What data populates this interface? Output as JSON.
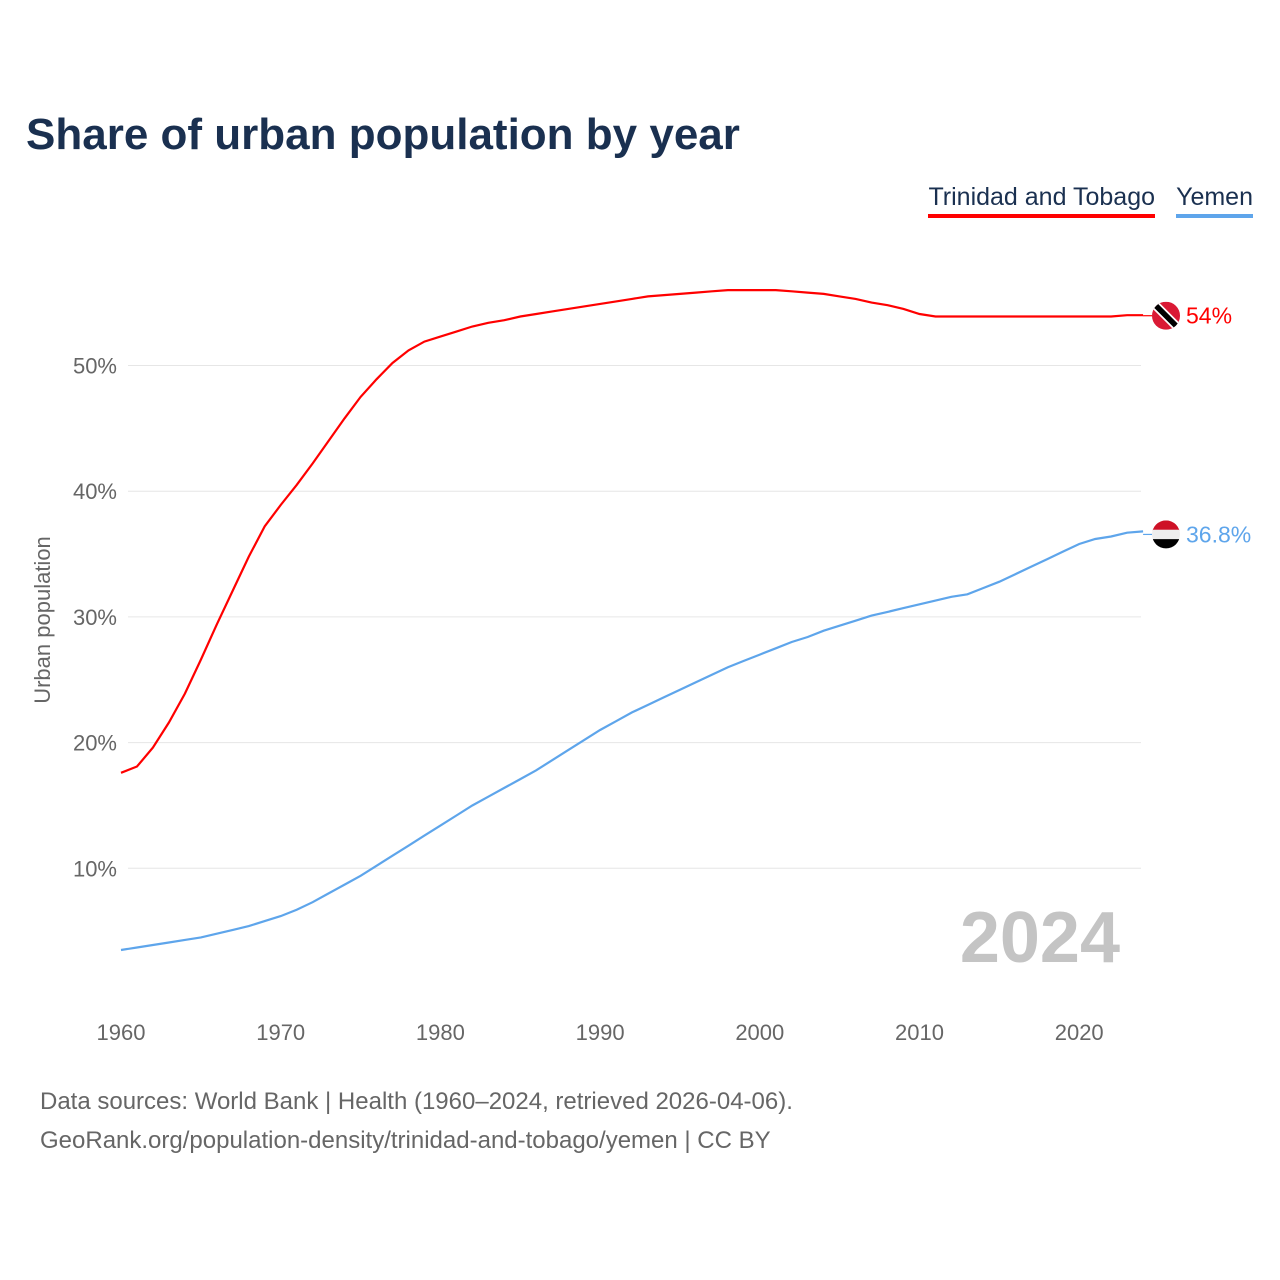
{
  "chart_data": {
    "type": "line",
    "title": "Share of urban population by year",
    "xlabel": "",
    "ylabel": "Urban population",
    "xlim": [
      1960,
      2024
    ],
    "ylim": [
      0,
      60
    ],
    "grid": true,
    "legend_placement": "top-right",
    "x_ticks": [
      "1960",
      "1970",
      "1980",
      "1990",
      "2000",
      "2010",
      "2020"
    ],
    "y_ticks": [
      "10%",
      "20%",
      "30%",
      "40%",
      "50%"
    ],
    "year_label": "2024",
    "series": [
      {
        "name": "Trinidad and Tobago",
        "color": "#ff0000",
        "end_label": "54%",
        "flag": "trinidad-and-tobago-flag",
        "values": [
          17.6,
          18.1,
          19.6,
          21.6,
          23.9,
          26.6,
          29.4,
          32.1,
          34.8,
          37.2,
          38.9,
          40.5,
          42.2,
          44.0,
          45.8,
          47.5,
          48.9,
          50.2,
          51.2,
          51.9,
          52.3,
          52.7,
          53.1,
          53.4,
          53.6,
          53.9,
          54.1,
          54.3,
          54.5,
          54.7,
          54.9,
          55.1,
          55.3,
          55.5,
          55.6,
          55.7,
          55.8,
          55.9,
          56.0,
          56.0,
          56.0,
          56.0,
          55.9,
          55.8,
          55.7,
          55.5,
          55.3,
          55.0,
          54.8,
          54.5,
          54.1,
          53.9,
          53.9,
          53.9,
          53.9,
          53.9,
          53.9,
          53.9,
          53.9,
          53.9,
          53.9,
          53.9,
          53.9,
          54.0,
          54.0
        ]
      },
      {
        "name": "Yemen",
        "color": "#5ea5eb",
        "end_label": "36.8%",
        "flag": "yemen-flag",
        "values": [
          3.5,
          3.7,
          3.9,
          4.1,
          4.3,
          4.5,
          4.8,
          5.1,
          5.4,
          5.8,
          6.2,
          6.7,
          7.3,
          8.0,
          8.7,
          9.4,
          10.2,
          11.0,
          11.8,
          12.6,
          13.4,
          14.2,
          15.0,
          15.7,
          16.4,
          17.1,
          17.8,
          18.6,
          19.4,
          20.2,
          21.0,
          21.7,
          22.4,
          23.0,
          23.6,
          24.2,
          24.8,
          25.4,
          26.0,
          26.5,
          27.0,
          27.5,
          28.0,
          28.4,
          28.9,
          29.3,
          29.7,
          30.1,
          30.4,
          30.7,
          31.0,
          31.3,
          31.6,
          31.8,
          32.3,
          32.8,
          33.4,
          34.0,
          34.6,
          35.2,
          35.8,
          36.2,
          36.4,
          36.7,
          36.8
        ]
      }
    ]
  },
  "footer": {
    "line1": "Data sources: World Bank | Health (1960–2024, retrieved 2026-04-06).",
    "line2": "GeoRank.org/population-density/trinidad-and-tobago/yemen | CC BY"
  }
}
